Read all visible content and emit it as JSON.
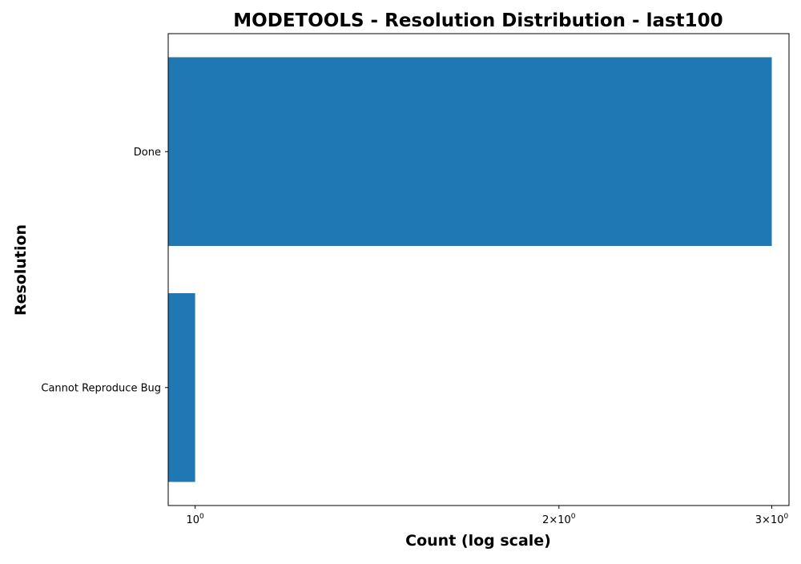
{
  "chart_data": {
    "type": "bar",
    "orientation": "horizontal",
    "title": "MODETOOLS - Resolution Distribution - last100",
    "xlabel": "Count (log scale)",
    "ylabel": "Resolution",
    "x_scale": "log",
    "xlim": [
      0.95,
      3.1
    ],
    "x_ticks": [
      {
        "value": 1,
        "label": "10^0"
      },
      {
        "value": 2,
        "label": "2×10^0"
      },
      {
        "value": 3,
        "label": "3×10^0"
      }
    ],
    "categories": [
      "Done",
      "Cannot Reproduce Bug"
    ],
    "values": [
      3,
      1
    ],
    "bar_color": "#1f77b4",
    "grid": false,
    "legend": "none"
  }
}
